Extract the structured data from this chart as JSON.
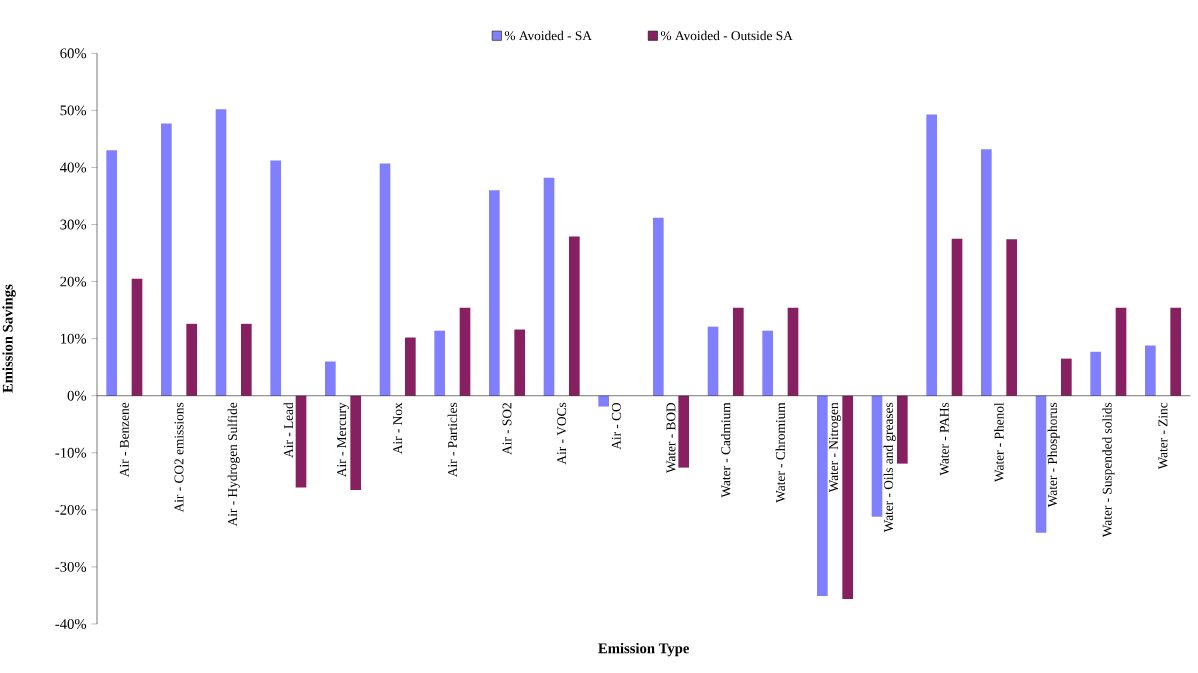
{
  "chart_data": {
    "type": "bar",
    "xlabel": "Emission Type",
    "ylabel": "Emission Savings",
    "categories": [
      "Air - Benzene",
      "Air - CO2 emissions",
      "Air - Hydrogen Sulfide",
      "Air - Lead",
      "Air - Mercury",
      "Air - Nox",
      "Air - Particles",
      "Air - SO2",
      "Air - VOCs",
      "Air - CO",
      "Water - BOD",
      "Water - Cadmium",
      "Water - Chromium",
      "Water - Nitrogen",
      "Water - Oils and greases",
      "Water - PAHs",
      "Water - Phenol",
      "Water - Phosphorus",
      "Water - Suspended solids",
      "Water - Zinc"
    ],
    "series": [
      {
        "name": "% Avoided - SA",
        "color": "#8080ff",
        "values": [
          43.0,
          47.7,
          50.2,
          41.2,
          6.0,
          40.7,
          11.4,
          36.0,
          38.2,
          -1.9,
          31.2,
          12.1,
          11.4,
          -35.1,
          -21.2,
          49.3,
          43.2,
          -24.0,
          7.7,
          8.8
        ]
      },
      {
        "name": "% Avoided - Outside SA",
        "color": "#862060",
        "values": [
          20.5,
          12.6,
          12.6,
          -16.1,
          -16.5,
          10.2,
          15.4,
          11.6,
          27.9,
          0,
          -12.6,
          15.4,
          15.4,
          -35.6,
          -11.9,
          27.5,
          27.4,
          6.5,
          15.4,
          15.4
        ]
      }
    ],
    "ylim": [
      -40,
      60
    ],
    "yticks": [
      {
        "value": -40,
        "label": "-40%"
      },
      {
        "value": -30,
        "label": "-30%"
      },
      {
        "value": -20,
        "label": "-20%"
      },
      {
        "value": -10,
        "label": "-10%"
      },
      {
        "value": 0,
        "label": "0%"
      },
      {
        "value": 10,
        "label": "10%"
      },
      {
        "value": 20,
        "label": "20%"
      },
      {
        "value": 30,
        "label": "30%"
      },
      {
        "value": 40,
        "label": "40%"
      },
      {
        "value": 50,
        "label": "50%"
      },
      {
        "value": 60,
        "label": "60%"
      }
    ],
    "legend": "top",
    "grid": false
  }
}
